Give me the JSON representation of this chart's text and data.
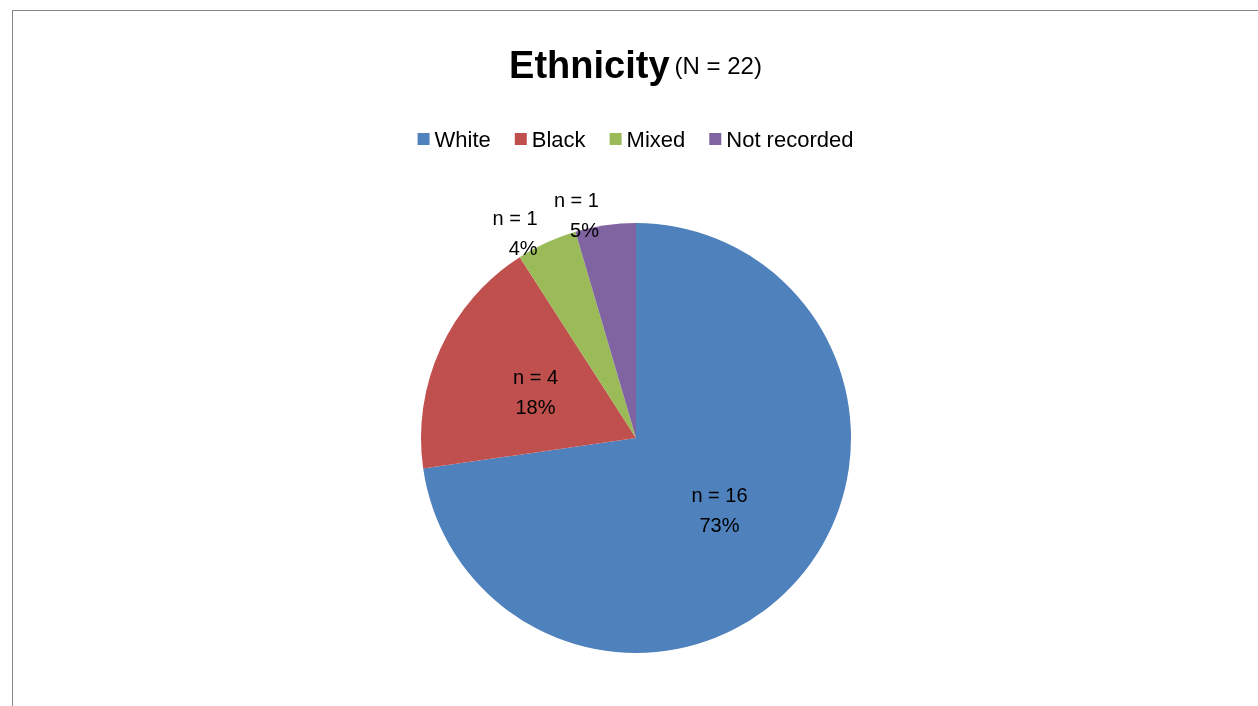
{
  "chart_data": {
    "type": "pie",
    "title": "Ethnicity",
    "subtitle": "(N = 22)",
    "categories": [
      "White",
      "Black",
      "Mixed",
      "Not recorded"
    ],
    "values": [
      16,
      4,
      1,
      1
    ],
    "colors": [
      "#4f81bd",
      "#c0504d",
      "#9bbb59",
      "#8064a2"
    ],
    "value_labels": [
      "n = 16\n73%",
      "n = 4\n18%",
      "n = 1\n4%",
      "n = 1\n5%"
    ],
    "legend": "top"
  }
}
